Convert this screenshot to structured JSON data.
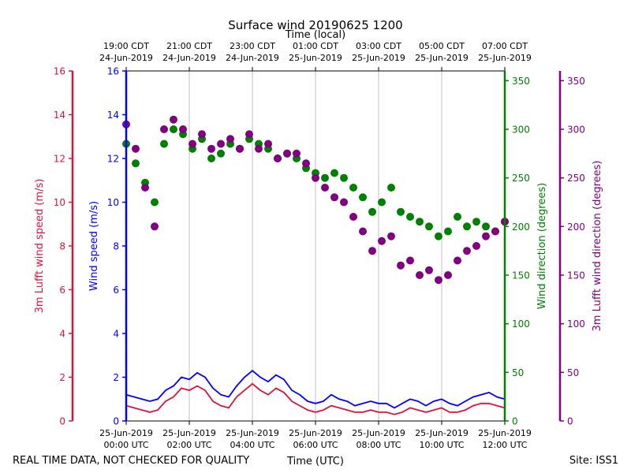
{
  "chart_data": {
    "type": "scatter",
    "title": "Surface wind 20190625 1200",
    "top_xlabel": "Time (local)",
    "xlabel": "Time (UTC)",
    "footer_left": "REAL TIME DATA, NOT CHECKED FOR QUALITY",
    "footer_right": "Site: ISS1",
    "x_range_hours": [
      0,
      12
    ],
    "bottom_ticks": [
      {
        "hour": 0,
        "line1": "25-Jun-2019",
        "line2": "00:00 UTC"
      },
      {
        "hour": 2,
        "line1": "25-Jun-2019",
        "line2": "02:00 UTC"
      },
      {
        "hour": 4,
        "line1": "25-Jun-2019",
        "line2": "04:00 UTC"
      },
      {
        "hour": 6,
        "line1": "25-Jun-2019",
        "line2": "06:00 UTC"
      },
      {
        "hour": 8,
        "line1": "25-Jun-2019",
        "line2": "08:00 UTC"
      },
      {
        "hour": 10,
        "line1": "25-Jun-2019",
        "line2": "10:00 UTC"
      },
      {
        "hour": 12,
        "line1": "25-Jun-2019",
        "line2": "12:00 UTC"
      }
    ],
    "top_ticks": [
      {
        "hour": 0,
        "line1": "19:00 CDT",
        "line2": "24-Jun-2019"
      },
      {
        "hour": 2,
        "line1": "21:00 CDT",
        "line2": "24-Jun-2019"
      },
      {
        "hour": 4,
        "line1": "23:00 CDT",
        "line2": "24-Jun-2019"
      },
      {
        "hour": 6,
        "line1": "01:00 CDT",
        "line2": "25-Jun-2019"
      },
      {
        "hour": 8,
        "line1": "03:00 CDT",
        "line2": "25-Jun-2019"
      },
      {
        "hour": 10,
        "line1": "05:00 CDT",
        "line2": "25-Jun-2019"
      },
      {
        "hour": 12,
        "line1": "07:00 CDT",
        "line2": "25-Jun-2019"
      }
    ],
    "axes": {
      "lufft_speed": {
        "label": "3m Lufft wind speed (m/s)",
        "color": "#dc143c",
        "range": [
          0,
          16
        ],
        "ticks": [
          0,
          2,
          4,
          6,
          8,
          10,
          12,
          14,
          16
        ]
      },
      "speed": {
        "label": "Wind speed (m/s)",
        "color": "#0000ff",
        "range": [
          0,
          16
        ],
        "ticks": [
          0,
          2,
          4,
          6,
          8,
          10,
          12,
          14,
          16
        ]
      },
      "direction": {
        "label": "Wind direction (degrees)",
        "color": "#008000",
        "range": [
          0,
          360
        ],
        "ticks": [
          0,
          50,
          100,
          150,
          200,
          250,
          300,
          350
        ]
      },
      "lufft_direction": {
        "label": "3m Lufft wind direction (degrees)",
        "color": "#800080",
        "range": [
          0,
          360
        ],
        "ticks": [
          0,
          50,
          100,
          150,
          200,
          250,
          300,
          350
        ]
      }
    },
    "series": [
      {
        "name": "Wind speed",
        "color": "#0000ff",
        "type": "line",
        "axis": "speed",
        "hours": [
          0.0,
          0.25,
          0.5,
          0.75,
          1.0,
          1.25,
          1.5,
          1.75,
          2.0,
          2.25,
          2.5,
          2.75,
          3.0,
          3.25,
          3.5,
          3.75,
          4.0,
          4.25,
          4.5,
          4.75,
          5.0,
          5.25,
          5.5,
          5.75,
          6.0,
          6.25,
          6.5,
          6.75,
          7.0,
          7.25,
          7.5,
          7.75,
          8.0,
          8.25,
          8.5,
          8.75,
          9.0,
          9.25,
          9.5,
          9.75,
          10.0,
          10.25,
          10.5,
          10.75,
          11.0,
          11.25,
          11.5,
          11.75,
          12.0
        ],
        "values": [
          1.2,
          1.1,
          1.0,
          0.9,
          1.0,
          1.4,
          1.6,
          2.0,
          1.9,
          2.2,
          2.0,
          1.5,
          1.2,
          1.1,
          1.6,
          2.0,
          2.3,
          2.0,
          1.8,
          2.1,
          1.9,
          1.4,
          1.2,
          0.9,
          0.8,
          0.9,
          1.2,
          1.0,
          0.9,
          0.7,
          0.8,
          0.9,
          0.8,
          0.8,
          0.6,
          0.8,
          1.0,
          0.9,
          0.7,
          0.9,
          1.0,
          0.8,
          0.7,
          0.9,
          1.1,
          1.2,
          1.3,
          1.1,
          1.0
        ]
      },
      {
        "name": "3m Lufft wind speed",
        "color": "#dc143c",
        "type": "line",
        "axis": "lufft_speed",
        "hours": [
          0.0,
          0.25,
          0.5,
          0.75,
          1.0,
          1.25,
          1.5,
          1.75,
          2.0,
          2.25,
          2.5,
          2.75,
          3.0,
          3.25,
          3.5,
          3.75,
          4.0,
          4.25,
          4.5,
          4.75,
          5.0,
          5.25,
          5.5,
          5.75,
          6.0,
          6.25,
          6.5,
          6.75,
          7.0,
          7.25,
          7.5,
          7.75,
          8.0,
          8.25,
          8.5,
          8.75,
          9.0,
          9.25,
          9.5,
          9.75,
          10.0,
          10.25,
          10.5,
          10.75,
          11.0,
          11.25,
          11.5,
          11.75,
          12.0
        ],
        "values": [
          0.7,
          0.6,
          0.5,
          0.4,
          0.5,
          0.9,
          1.1,
          1.5,
          1.4,
          1.6,
          1.4,
          0.9,
          0.7,
          0.6,
          1.1,
          1.4,
          1.7,
          1.4,
          1.2,
          1.5,
          1.3,
          0.9,
          0.7,
          0.5,
          0.4,
          0.5,
          0.7,
          0.6,
          0.5,
          0.4,
          0.4,
          0.5,
          0.4,
          0.4,
          0.3,
          0.4,
          0.6,
          0.5,
          0.4,
          0.5,
          0.6,
          0.4,
          0.4,
          0.5,
          0.7,
          0.8,
          0.8,
          0.7,
          0.6
        ]
      },
      {
        "name": "Wind direction",
        "color": "#008000",
        "type": "scatter",
        "axis": "direction",
        "hours": [
          0.0,
          0.3,
          0.6,
          0.9,
          1.2,
          1.5,
          1.8,
          2.1,
          2.4,
          2.7,
          3.0,
          3.3,
          3.6,
          3.9,
          4.2,
          4.5,
          4.8,
          5.1,
          5.4,
          5.7,
          6.0,
          6.3,
          6.6,
          6.9,
          7.2,
          7.5,
          7.8,
          8.1,
          8.4,
          8.7,
          9.0,
          9.3,
          9.6,
          9.9,
          10.2,
          10.5,
          10.8,
          11.1,
          11.4,
          11.7,
          12.0
        ],
        "values": [
          285,
          265,
          245,
          225,
          285,
          300,
          295,
          280,
          290,
          270,
          275,
          285,
          280,
          290,
          285,
          280,
          270,
          275,
          270,
          260,
          255,
          250,
          255,
          250,
          240,
          230,
          215,
          225,
          240,
          215,
          210,
          205,
          200,
          190,
          195,
          210,
          200,
          205,
          200,
          195,
          205
        ]
      },
      {
        "name": "3m Lufft wind direction",
        "color": "#800080",
        "type": "scatter",
        "axis": "lufft_direction",
        "hours": [
          0.0,
          0.3,
          0.6,
          0.9,
          1.2,
          1.5,
          1.8,
          2.1,
          2.4,
          2.7,
          3.0,
          3.3,
          3.6,
          3.9,
          4.2,
          4.5,
          4.8,
          5.1,
          5.4,
          5.7,
          6.0,
          6.3,
          6.6,
          6.9,
          7.2,
          7.5,
          7.8,
          8.1,
          8.4,
          8.7,
          9.0,
          9.3,
          9.6,
          9.9,
          10.2,
          10.5,
          10.8,
          11.1,
          11.4,
          11.7,
          12.0
        ],
        "values": [
          305,
          280,
          240,
          200,
          300,
          310,
          300,
          285,
          295,
          280,
          285,
          290,
          280,
          295,
          280,
          285,
          270,
          275,
          275,
          265,
          250,
          240,
          230,
          225,
          210,
          195,
          175,
          185,
          190,
          160,
          165,
          150,
          155,
          145,
          150,
          165,
          175,
          180,
          190,
          195,
          205
        ]
      }
    ]
  }
}
